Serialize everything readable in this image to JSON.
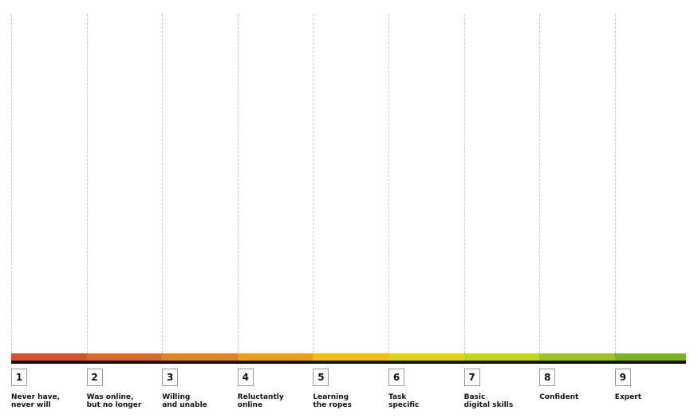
{
  "stages": [
    {
      "number": "1",
      "label": "Never have,\nnever will",
      "color": "#d9502f"
    },
    {
      "number": "2",
      "label": "Was online,\nbut no longer",
      "color": "#dc6a25"
    },
    {
      "number": "3",
      "label": "Willing\nand unable",
      "color": "#e1821c"
    },
    {
      "number": "4",
      "label": "Reluctantly\nonline",
      "color": "#eda112"
    },
    {
      "number": "5",
      "label": "Learning\nthe ropes",
      "color": "#f1be0a"
    },
    {
      "number": "6",
      "label": "Task\nspecific",
      "color": "#dfd40a"
    },
    {
      "number": "7",
      "label": "Basic\ndigital skills",
      "color": "#c2d614"
    },
    {
      "number": "8",
      "label": "Confident",
      "color": "#9cc61a"
    },
    {
      "number": "9",
      "label": "Expert",
      "color": "#7bb31e"
    }
  ]
}
